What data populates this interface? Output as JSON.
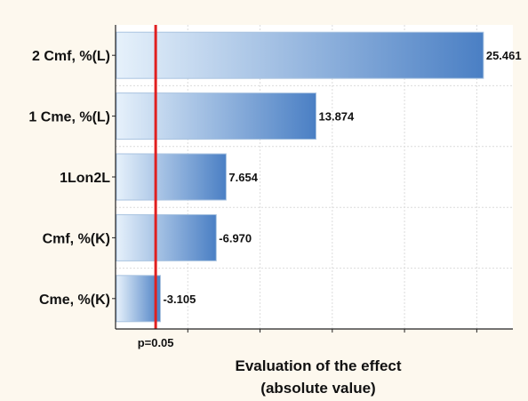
{
  "chart_data": {
    "type": "bar",
    "orientation": "horizontal",
    "categories": [
      "2 Cmf, %(L)",
      "1 Cme, %(L)",
      "1Lon2L",
      "Cmf, %(K)",
      "Cme, %(K)"
    ],
    "values": [
      25.461,
      13.874,
      7.654,
      -6.97,
      -3.105
    ],
    "value_labels": [
      "25.461",
      "13.874",
      "7.654",
      "-6.970",
      "-3.105"
    ],
    "bar_length_basis": "absolute value",
    "xlim": [
      0,
      27.5
    ],
    "x_gridlines": [
      5,
      10,
      15,
      20,
      25
    ],
    "threshold": {
      "value": 2.776,
      "label": "p=0.05",
      "color": "#e02020"
    },
    "xlabel_line1": "Evaluation of the effect",
    "xlabel_line2": "(absolute value)",
    "ylabel": "",
    "grid": true,
    "colors": {
      "bar_light": "#e6f1fb",
      "bar_dark": "#4a7fc4",
      "bar_stroke": "#a9c3e0",
      "plot_background": "#ffffff",
      "page_background": "#fdf8ee",
      "gridline": "#dcdcdc",
      "threshold": "#e02020"
    }
  }
}
